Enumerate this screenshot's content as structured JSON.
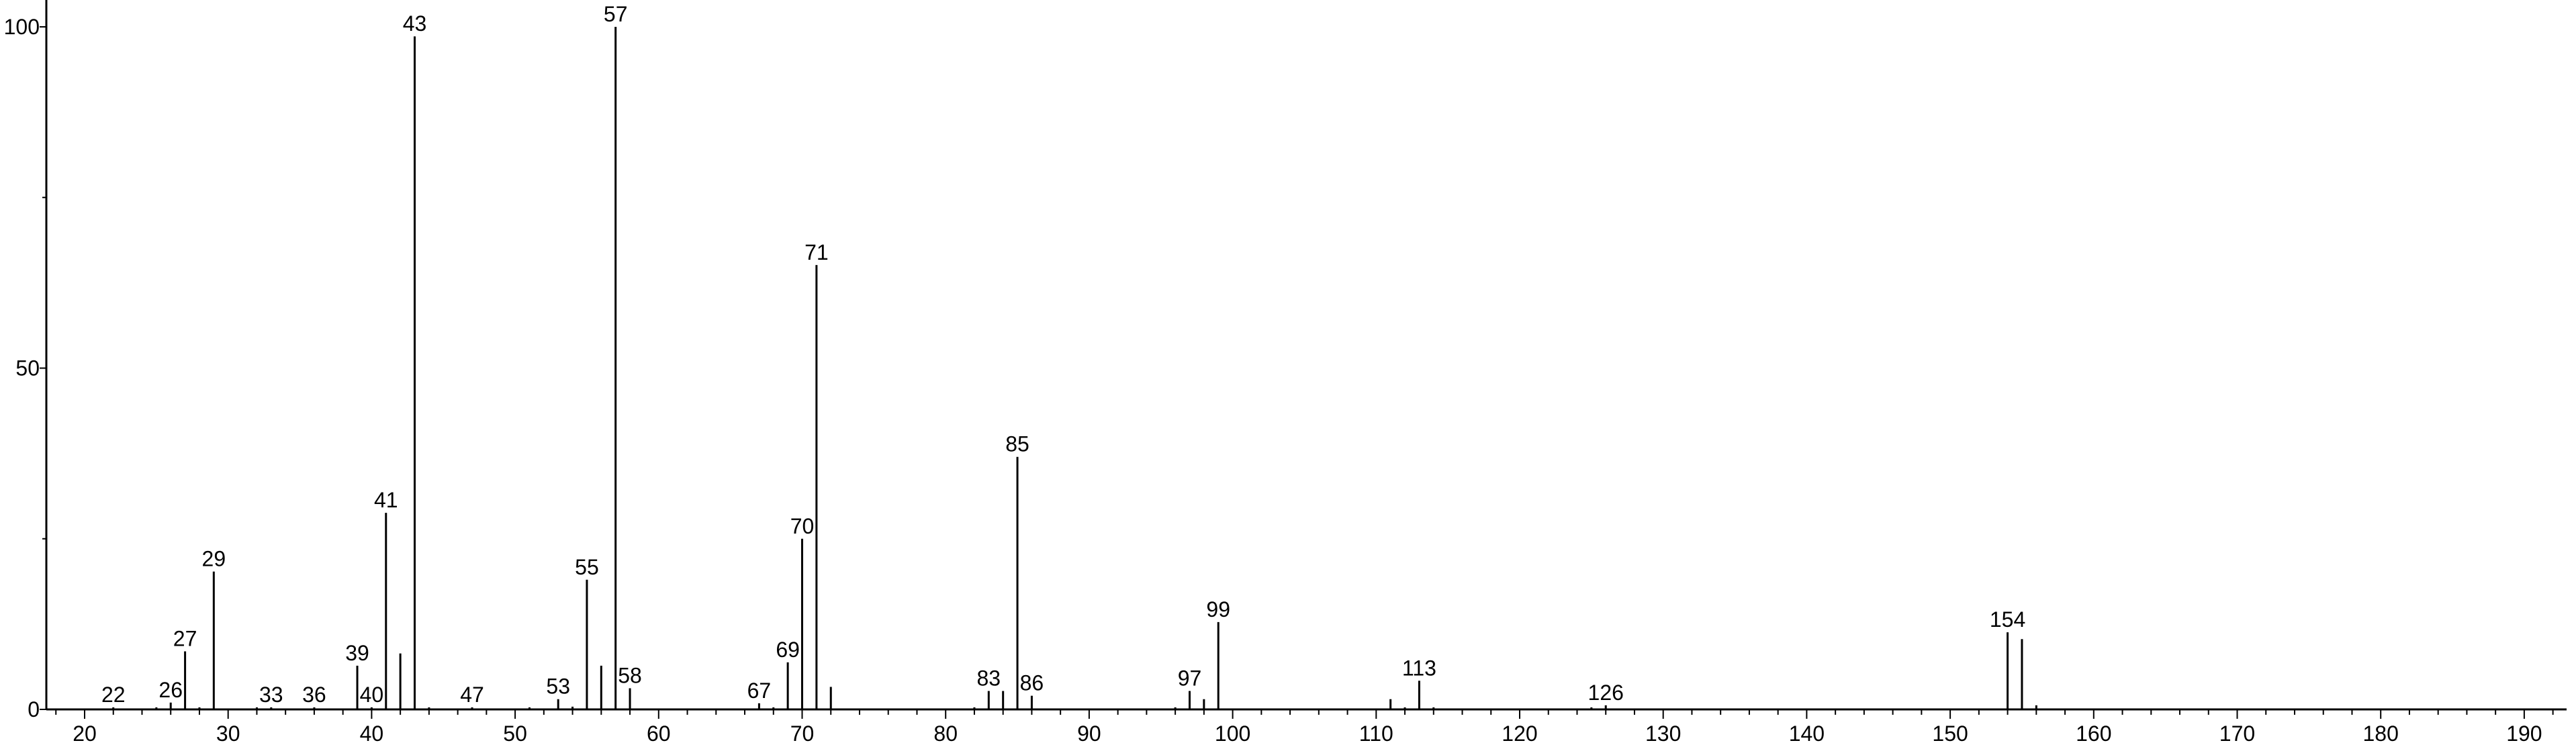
{
  "chart_data": {
    "type": "bar",
    "title": "",
    "xlabel": "",
    "ylabel": "",
    "xlim": [
      17.5,
      192.5
    ],
    "ylim": [
      0,
      100
    ],
    "grid": false,
    "bar_color": "#000000",
    "x_ticks": [
      20,
      30,
      40,
      50,
      60,
      70,
      80,
      90,
      100,
      110,
      120,
      130,
      140,
      150,
      160,
      170,
      180,
      190
    ],
    "y_ticks": [
      0,
      50,
      100
    ],
    "y_minor_ticks": [
      25,
      75
    ],
    "peaks": [
      {
        "x": 22,
        "y": 0.3,
        "label": "22"
      },
      {
        "x": 25,
        "y": 0.3
      },
      {
        "x": 26,
        "y": 1.0,
        "label": "26"
      },
      {
        "x": 27,
        "y": 8.5,
        "label": "27"
      },
      {
        "x": 28,
        "y": 0.3
      },
      {
        "x": 29,
        "y": 20.2,
        "label": "29"
      },
      {
        "x": 32,
        "y": 0.3
      },
      {
        "x": 33,
        "y": 0.3,
        "label": "33"
      },
      {
        "x": 36,
        "y": 0.3,
        "label": "36"
      },
      {
        "x": 39,
        "y": 6.4,
        "label": "39"
      },
      {
        "x": 40,
        "y": 0.3,
        "label": "40"
      },
      {
        "x": 41,
        "y": 28.8,
        "label": "41"
      },
      {
        "x": 42,
        "y": 8.2
      },
      {
        "x": 43,
        "y": 98.6,
        "label": "43"
      },
      {
        "x": 44,
        "y": 0.3
      },
      {
        "x": 47,
        "y": 0.3,
        "label": "47"
      },
      {
        "x": 51,
        "y": 0.3
      },
      {
        "x": 53,
        "y": 1.5,
        "label": "53"
      },
      {
        "x": 54,
        "y": 0.4
      },
      {
        "x": 55,
        "y": 19.0,
        "label": "55"
      },
      {
        "x": 56,
        "y": 6.4
      },
      {
        "x": 57,
        "y": 100,
        "label": "57"
      },
      {
        "x": 58,
        "y": 3.1,
        "label": "58"
      },
      {
        "x": 67,
        "y": 0.9,
        "label": "67"
      },
      {
        "x": 68,
        "y": 0.3
      },
      {
        "x": 69,
        "y": 6.9,
        "label": "69"
      },
      {
        "x": 70,
        "y": 25.0,
        "label": "70"
      },
      {
        "x": 71,
        "y": 65.1,
        "label": "71"
      },
      {
        "x": 72,
        "y": 3.3
      },
      {
        "x": 82,
        "y": 0.3
      },
      {
        "x": 83,
        "y": 2.7,
        "label": "83"
      },
      {
        "x": 84,
        "y": 2.7
      },
      {
        "x": 85,
        "y": 37.0,
        "label": "85"
      },
      {
        "x": 86,
        "y": 2.0,
        "label": "86"
      },
      {
        "x": 96,
        "y": 0.3
      },
      {
        "x": 97,
        "y": 2.7,
        "label": "97"
      },
      {
        "x": 98,
        "y": 1.5
      },
      {
        "x": 99,
        "y": 12.8,
        "label": "99"
      },
      {
        "x": 111,
        "y": 1.5
      },
      {
        "x": 112,
        "y": 0.2
      },
      {
        "x": 113,
        "y": 4.2,
        "label": "113"
      },
      {
        "x": 114,
        "y": 0.3
      },
      {
        "x": 125,
        "y": 0.2
      },
      {
        "x": 126,
        "y": 0.6,
        "label": "126"
      },
      {
        "x": 154,
        "y": 11.3,
        "label": "154"
      },
      {
        "x": 155,
        "y": 10.3
      },
      {
        "x": 156,
        "y": 0.6
      }
    ]
  }
}
